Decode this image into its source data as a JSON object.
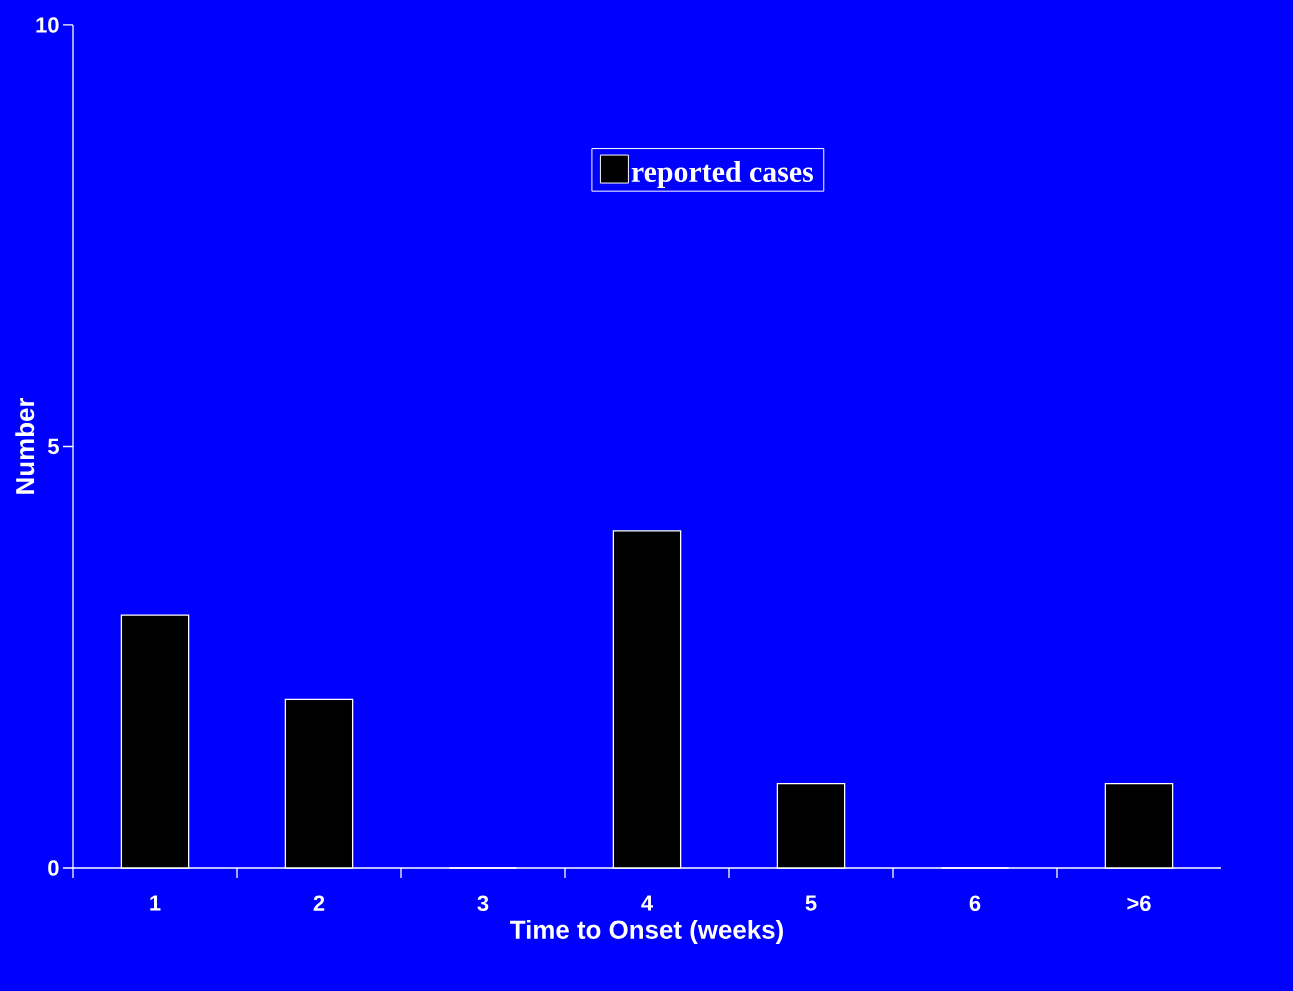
{
  "chart_data": {
    "type": "bar",
    "xlabel": "Time to Onset (weeks)",
    "ylabel": "Number",
    "categories": [
      "1",
      "2",
      "3",
      "4",
      "5",
      "6",
      ">6"
    ],
    "series": [
      {
        "name": "reported cases",
        "color": "#000000",
        "values": [
          3,
          2,
          0,
          4,
          1,
          0,
          1
        ]
      }
    ],
    "ylim": [
      0,
      10
    ],
    "yticks": [
      0,
      5,
      10
    ],
    "legend": "top"
  }
}
